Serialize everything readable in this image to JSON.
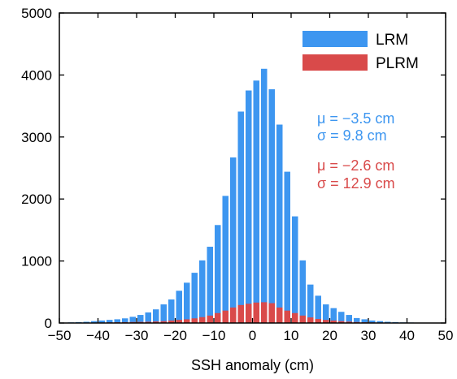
{
  "chart_data": {
    "type": "bar",
    "xlabel": "SSH anomaly (cm)",
    "ylabel": "",
    "xlim": [
      -50,
      50
    ],
    "ylim": [
      0,
      5000
    ],
    "xticks": [
      -50,
      -40,
      -30,
      -20,
      -10,
      0,
      10,
      20,
      30,
      40,
      50
    ],
    "xtick_labels": [
      "−50",
      "−40",
      "−30",
      "−20",
      "−10",
      "0",
      "10",
      "20",
      "30",
      "40",
      "50"
    ],
    "yticks": [
      0,
      1000,
      2000,
      3000,
      4000,
      5000
    ],
    "ytick_labels": [
      "0",
      "1000",
      "2000",
      "3000",
      "4000",
      "5000"
    ],
    "grid": false,
    "legend_position": "top-right",
    "bin_width": 2,
    "x": [
      -50,
      -48,
      -46,
      -44,
      -42,
      -40,
      -38,
      -36,
      -34,
      -32,
      -30,
      -28,
      -26,
      -24,
      -22,
      -20,
      -18,
      -16,
      -14,
      -12,
      -10,
      -8,
      -6,
      -4,
      -2,
      0,
      2,
      4,
      6,
      8,
      10,
      12,
      14,
      16,
      18,
      20,
      22,
      24,
      26,
      28,
      30,
      32,
      34,
      36,
      38,
      40,
      42,
      44,
      46,
      48
    ],
    "series": [
      {
        "name": "LRM",
        "color": "#3d96f0",
        "values": [
          5,
          10,
          15,
          20,
          30,
          40,
          50,
          60,
          75,
          100,
          130,
          170,
          220,
          300,
          380,
          520,
          650,
          810,
          1010,
          1230,
          1580,
          2050,
          2670,
          3410,
          3750,
          3910,
          4100,
          3770,
          3200,
          2440,
          1720,
          1010,
          620,
          440,
          300,
          240,
          180,
          130,
          80,
          60,
          40,
          30,
          20,
          15,
          10,
          8,
          5,
          4,
          3,
          2
        ]
      },
      {
        "name": "PLRM",
        "color": "#d94a4a",
        "values": [
          2,
          3,
          4,
          5,
          6,
          8,
          10,
          12,
          14,
          16,
          18,
          20,
          25,
          30,
          40,
          50,
          60,
          75,
          95,
          120,
          160,
          200,
          250,
          290,
          310,
          330,
          335,
          320,
          250,
          200,
          160,
          120,
          90,
          65,
          50,
          40,
          30,
          22,
          16,
          12,
          9,
          7,
          5,
          4,
          3,
          2,
          2,
          1,
          1,
          1
        ]
      }
    ],
    "annotations": {
      "lrm_mu": "μ = −3.5 cm",
      "lrm_sigma": "σ = 9.8 cm",
      "plrm_mu": "μ = −2.6 cm",
      "plrm_sigma": "σ = 12.9 cm"
    }
  }
}
